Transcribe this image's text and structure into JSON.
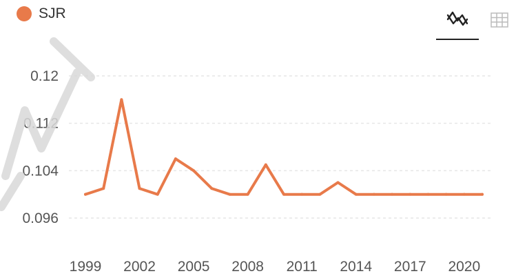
{
  "legend": {
    "series_name": "SJR",
    "color": "#e87a4a"
  },
  "toolbar": {
    "chart_view_icon": "line-chart-icon",
    "table_view_icon": "table-icon"
  },
  "chart_data": {
    "type": "line",
    "title": "",
    "xlabel": "",
    "ylabel": "",
    "x": [
      1999,
      2000,
      2001,
      2002,
      2003,
      2004,
      2005,
      2006,
      2007,
      2008,
      2009,
      2010,
      2011,
      2012,
      2013,
      2014,
      2015,
      2016,
      2017,
      2018,
      2019,
      2020,
      2021
    ],
    "series": [
      {
        "name": "SJR",
        "color": "#e87a4a",
        "values": [
          0.1,
          0.101,
          0.116,
          0.101,
          0.1,
          0.106,
          0.104,
          0.101,
          0.1,
          0.1,
          0.105,
          0.1,
          0.1,
          0.1,
          0.102,
          0.1,
          0.1,
          0.1,
          0.1,
          0.1,
          0.1,
          0.1,
          0.1
        ]
      }
    ],
    "xticks": [
      "1999",
      "2002",
      "2005",
      "2008",
      "2011",
      "2014",
      "2017",
      "2020"
    ],
    "yticks": [
      "0.096",
      "0.104",
      "0.112",
      "0.12"
    ],
    "ylim": [
      0.096,
      0.12
    ],
    "grid": "horizontal dashed",
    "legend_position": "top-left"
  },
  "watermark": {
    "color": "#dddddd"
  }
}
